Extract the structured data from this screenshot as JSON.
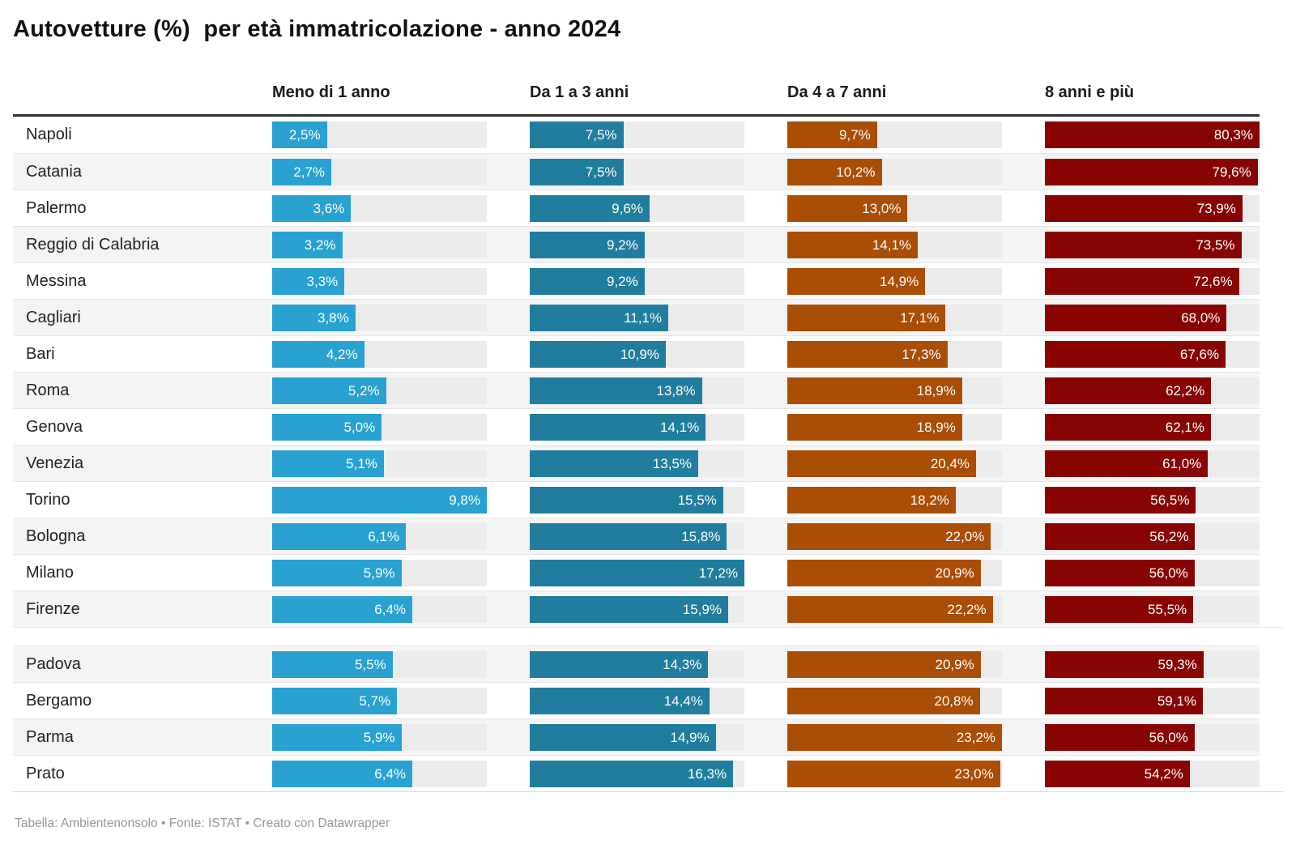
{
  "title": "Autovetture (%)  per età immatricolazione - anno 2024",
  "footer": "Tabella: Ambientenonsolo • Fonte: ISTAT • Creato con Datawrapper",
  "colors": {
    "col_meno_1_anno": "#29a2d1",
    "col_1_3_anni": "#207d9d",
    "col_4_7_anni": "#aa4d05",
    "col_8_piu": "#870403",
    "track": "#ebebeb",
    "stripe": "#f4f4f4",
    "header_rule": "#333333"
  },
  "chart_data": {
    "type": "table",
    "title": "Autovetture (%)  per età immatricolazione - anno 2024",
    "note": "horizontal bars, each column scaled to its own max value",
    "columns": [
      {
        "label": "Meno di 1 anno",
        "color": "#29a2d1",
        "max": 9.8
      },
      {
        "label": "Da 1 a 3 anni",
        "color": "#207d9d",
        "max": 17.2
      },
      {
        "label": "Da 4 a 7 anni",
        "color": "#aa4d05",
        "max": 23.2
      },
      {
        "label": "8 anni e più",
        "color": "#870403",
        "max": 80.3
      }
    ],
    "groups": [
      {
        "rows": [
          {
            "city": "Napoli",
            "values": [
              2.5,
              7.5,
              9.7,
              80.3
            ],
            "labels": [
              "2,5%",
              "7,5%",
              "9,7%",
              "80,3%"
            ]
          },
          {
            "city": "Catania",
            "values": [
              2.7,
              7.5,
              10.2,
              79.6
            ],
            "labels": [
              "2,7%",
              "7,5%",
              "10,2%",
              "79,6%"
            ]
          },
          {
            "city": "Palermo",
            "values": [
              3.6,
              9.6,
              13.0,
              73.9
            ],
            "labels": [
              "3,6%",
              "9,6%",
              "13,0%",
              "73,9%"
            ]
          },
          {
            "city": "Reggio di Calabria",
            "values": [
              3.2,
              9.2,
              14.1,
              73.5
            ],
            "labels": [
              "3,2%",
              "9,2%",
              "14,1%",
              "73,5%"
            ]
          },
          {
            "city": "Messina",
            "values": [
              3.3,
              9.2,
              14.9,
              72.6
            ],
            "labels": [
              "3,3%",
              "9,2%",
              "14,9%",
              "72,6%"
            ]
          },
          {
            "city": "Cagliari",
            "values": [
              3.8,
              11.1,
              17.1,
              68.0
            ],
            "labels": [
              "3,8%",
              "11,1%",
              "17,1%",
              "68,0%"
            ]
          },
          {
            "city": "Bari",
            "values": [
              4.2,
              10.9,
              17.3,
              67.6
            ],
            "labels": [
              "4,2%",
              "10,9%",
              "17,3%",
              "67,6%"
            ]
          },
          {
            "city": "Roma",
            "values": [
              5.2,
              13.8,
              18.9,
              62.2
            ],
            "labels": [
              "5,2%",
              "13,8%",
              "18,9%",
              "62,2%"
            ]
          },
          {
            "city": "Genova",
            "values": [
              5.0,
              14.1,
              18.9,
              62.1
            ],
            "labels": [
              "5,0%",
              "14,1%",
              "18,9%",
              "62,1%"
            ]
          },
          {
            "city": "Venezia",
            "values": [
              5.1,
              13.5,
              20.4,
              61.0
            ],
            "labels": [
              "5,1%",
              "13,5%",
              "20,4%",
              "61,0%"
            ]
          },
          {
            "city": "Torino",
            "values": [
              9.8,
              15.5,
              18.2,
              56.5
            ],
            "labels": [
              "9,8%",
              "15,5%",
              "18,2%",
              "56,5%"
            ]
          },
          {
            "city": "Bologna",
            "values": [
              6.1,
              15.8,
              22.0,
              56.2
            ],
            "labels": [
              "6,1%",
              "15,8%",
              "22,0%",
              "56,2%"
            ]
          },
          {
            "city": "Milano",
            "values": [
              5.9,
              17.2,
              20.9,
              56.0
            ],
            "labels": [
              "5,9%",
              "17,2%",
              "20,9%",
              "56,0%"
            ]
          },
          {
            "city": "Firenze",
            "values": [
              6.4,
              15.9,
              22.2,
              55.5
            ],
            "labels": [
              "6,4%",
              "15,9%",
              "22,2%",
              "55,5%"
            ]
          }
        ]
      },
      {
        "rows": [
          {
            "city": "Padova",
            "values": [
              5.5,
              14.3,
              20.9,
              59.3
            ],
            "labels": [
              "5,5%",
              "14,3%",
              "20,9%",
              "59,3%"
            ]
          },
          {
            "city": "Bergamo",
            "values": [
              5.7,
              14.4,
              20.8,
              59.1
            ],
            "labels": [
              "5,7%",
              "14,4%",
              "20,8%",
              "59,1%"
            ]
          },
          {
            "city": "Parma",
            "values": [
              5.9,
              14.9,
              23.2,
              56.0
            ],
            "labels": [
              "5,9%",
              "14,9%",
              "23,2%",
              "56,0%"
            ]
          },
          {
            "city": "Prato",
            "values": [
              6.4,
              16.3,
              23.0,
              54.2
            ],
            "labels": [
              "6,4%",
              "16,3%",
              "23,0%",
              "54,2%"
            ]
          }
        ]
      }
    ]
  }
}
